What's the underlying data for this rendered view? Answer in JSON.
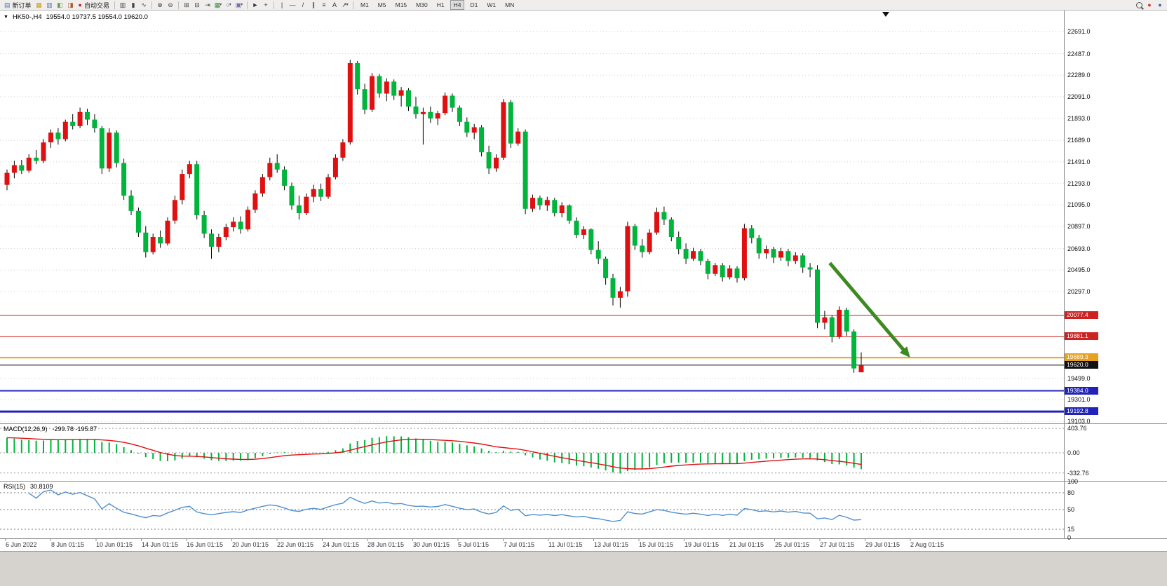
{
  "toolbar": {
    "timeframes": [
      "M1",
      "M5",
      "M15",
      "M30",
      "H1",
      "H4",
      "D1",
      "W1",
      "MN"
    ],
    "active_timeframe": "H4",
    "items": [
      {
        "kind": "text",
        "name": "new-order-button",
        "glyph": "▤",
        "glyph_color": "#4a78b0",
        "label": "新订单"
      },
      {
        "kind": "icon",
        "name": "chart-window-icon",
        "glyph": "▦",
        "color": "#c79a16"
      },
      {
        "kind": "icon",
        "name": "market-watch-icon",
        "glyph": "▥",
        "color": "#4a78b0"
      },
      {
        "kind": "icon",
        "name": "navigator-icon",
        "glyph": "◧",
        "color": "#6a9a4a"
      },
      {
        "kind": "icon",
        "name": "terminal-icon",
        "glyph": "◨",
        "color": "#b05a2a"
      },
      {
        "kind": "text",
        "name": "autotrading-button",
        "glyph": "●",
        "glyph_color": "#d22020",
        "label": "自动交易"
      },
      {
        "kind": "sep"
      },
      {
        "kind": "icon",
        "name": "bar-chart-icon",
        "glyph": "▥",
        "color": "#444"
      },
      {
        "kind": "icon",
        "name": "candlestick-chart-icon",
        "glyph": "▮",
        "color": "#444"
      },
      {
        "kind": "icon",
        "name": "line-chart-icon",
        "glyph": "∿",
        "color": "#444"
      },
      {
        "kind": "sep"
      },
      {
        "kind": "icon",
        "name": "zoom-in-icon",
        "glyph": "⊕",
        "color": "#444"
      },
      {
        "kind": "icon",
        "name": "zoom-out-icon",
        "glyph": "⊖",
        "color": "#444"
      },
      {
        "kind": "sep"
      },
      {
        "kind": "icon",
        "name": "tile-windows-icon",
        "glyph": "⊞",
        "color": "#444"
      },
      {
        "kind": "icon",
        "name": "auto-arrange-icon",
        "glyph": "⊟",
        "color": "#444"
      },
      {
        "kind": "icon",
        "name": "chart-shift-icon",
        "glyph": "⇥",
        "color": "#444"
      },
      {
        "kind": "icon",
        "name": "new-chart-icon",
        "glyph": "▦",
        "color": "#3b8a3b",
        "caret": true
      },
      {
        "kind": "icon",
        "name": "profiles-icon",
        "glyph": "○",
        "color": "#3b6ab0",
        "caret": true
      },
      {
        "kind": "icon",
        "name": "snapshot-icon",
        "glyph": "▣",
        "color": "#7a6ab0",
        "caret": true
      },
      {
        "kind": "sep"
      },
      {
        "kind": "icon",
        "name": "cursor-icon",
        "glyph": "►",
        "color": "#333"
      },
      {
        "kind": "icon",
        "name": "crosshair-icon",
        "glyph": "+",
        "color": "#333"
      },
      {
        "kind": "sep"
      },
      {
        "kind": "icon",
        "name": "vertical-line-icon",
        "glyph": "|",
        "color": "#333"
      },
      {
        "kind": "icon",
        "name": "horizontal-line-icon",
        "glyph": "—",
        "color": "#333"
      },
      {
        "kind": "icon",
        "name": "trendline-icon",
        "glyph": "/",
        "color": "#333"
      },
      {
        "kind": "icon",
        "name": "equidistant-channel-icon",
        "glyph": "∥",
        "color": "#333"
      },
      {
        "kind": "icon",
        "name": "fibonacci-icon",
        "glyph": "≡",
        "color": "#333"
      },
      {
        "kind": "icon",
        "name": "text-label-icon",
        "glyph": "A",
        "color": "#333"
      },
      {
        "kind": "icon",
        "name": "arrows-tool-icon",
        "glyph": "↗",
        "color": "#333",
        "caret": true
      },
      {
        "kind": "sep"
      },
      {
        "kind": "timeframes"
      },
      {
        "kind": "spacer"
      },
      {
        "kind": "mag",
        "name": "search-icon"
      },
      {
        "kind": "icon",
        "name": "notification-icon",
        "glyph": "●",
        "color": "#e03030"
      },
      {
        "kind": "icon",
        "name": "community-icon",
        "glyph": "●",
        "color": "#3b6ab0"
      }
    ]
  },
  "chart_header": {
    "symbol_period": "HK50-,H4",
    "ohlc": "19554.0 19737.5 19554.0 19620.0"
  },
  "indicators": {
    "macd": {
      "label": "MACD(12,26,9)",
      "values": "-299.78 -195.87",
      "scale": [
        "403.76",
        "0.00",
        "-332.76"
      ],
      "scale_values": [
        403.76,
        0,
        -332.76
      ],
      "range": {
        "min": -452,
        "max": 475
      }
    },
    "rsi": {
      "label": "RSI(15)",
      "value": "30.8109",
      "scale": [
        "100",
        "80",
        "50",
        "15",
        "0"
      ],
      "scale_values": [
        100,
        80,
        50,
        15,
        0
      ],
      "levels": [
        80,
        50,
        15
      ]
    }
  },
  "chart_data": {
    "type": "candlestick",
    "symbol": "HK50-",
    "period": "H4",
    "price_axis": {
      "min": 19084,
      "max": 22884,
      "labels": [
        {
          "text": "22691.0",
          "value": 22691
        },
        {
          "text": "22487.0",
          "value": 22487
        },
        {
          "text": "22289.0",
          "value": 22289
        },
        {
          "text": "22091.0",
          "value": 22091
        },
        {
          "text": "21893.0",
          "value": 21893
        },
        {
          "text": "21689.0",
          "value": 21689
        },
        {
          "text": "21491.0",
          "value": 21491
        },
        {
          "text": "21293.0",
          "value": 21293
        },
        {
          "text": "21095.0",
          "value": 21095
        },
        {
          "text": "20897.0",
          "value": 20897
        },
        {
          "text": "20693.0",
          "value": 20693
        },
        {
          "text": "20495.0",
          "value": 20495
        },
        {
          "text": "20297.0",
          "value": 20297
        },
        {
          "text": "19499.0",
          "value": 19499
        },
        {
          "text": "19301.0",
          "value": 19301
        },
        {
          "text": "19103.0",
          "value": 19103
        }
      ]
    },
    "time_axis": {
      "labels": [
        "6 Jun 2022",
        "8 Jun 01:15",
        "10 Jun 01:15",
        "14 Jun 01:15",
        "16 Jun 01:15",
        "20 Jun 01:15",
        "22 Jun 01:15",
        "24 Jun 01:15",
        "28 Jun 01:15",
        "30 Jun 01:15",
        "5 Jul 01:15",
        "7 Jul 01:15",
        "11 Jul 01:15",
        "13 Jul 01:15",
        "15 Jul 01:15",
        "19 Jul 01:15",
        "21 Jul 01:15",
        "25 Jul 01:15",
        "27 Jul 01:15",
        "29 Jul 01:15",
        "2 Aug 01:15"
      ]
    },
    "levels": [
      {
        "label": "20077.4",
        "value": 20077.4,
        "color": "#cc2222",
        "line_width": 1
      },
      {
        "label": "19881.1",
        "value": 19881.1,
        "color": "#cc2222",
        "line_width": 1
      },
      {
        "label": "19689.3",
        "value": 19689.3,
        "color": "#e8a020",
        "line_width": 2
      },
      {
        "label": "19620.0",
        "value": 19620.0,
        "color": "#111111",
        "line_width": 1
      },
      {
        "label": "19384.0",
        "value": 19384.0,
        "color": "#2222bb",
        "line_width": 2
      },
      {
        "label": "19192.8",
        "value": 19192.8,
        "color": "#2222bb",
        "line_width": 3
      }
    ],
    "arrow": {
      "from_index": 112.7,
      "from_price": 20560,
      "to_index": 123.7,
      "to_price": 19690,
      "color": "#3c8a20"
    },
    "colors": {
      "up": "#e01010",
      "down": "#00b43c",
      "wick": "#000000",
      "macd_hist": "#00b43c",
      "macd_signal": "#e01010",
      "rsi_line": "#4f8fd0"
    },
    "candles": [
      [
        21280,
        21420,
        21230,
        21390
      ],
      [
        21390,
        21500,
        21340,
        21460
      ],
      [
        21460,
        21510,
        21380,
        21410
      ],
      [
        21410,
        21560,
        21390,
        21530
      ],
      [
        21530,
        21600,
        21470,
        21500
      ],
      [
        21500,
        21700,
        21480,
        21670
      ],
      [
        21670,
        21790,
        21620,
        21760
      ],
      [
        21760,
        21800,
        21650,
        21700
      ],
      [
        21700,
        21880,
        21680,
        21860
      ],
      [
        21860,
        21930,
        21790,
        21820
      ],
      [
        21820,
        21990,
        21800,
        21950
      ],
      [
        21950,
        21980,
        21830,
        21880
      ],
      [
        21880,
        21930,
        21760,
        21800
      ],
      [
        21800,
        21820,
        21380,
        21430
      ],
      [
        21430,
        21800,
        21400,
        21760
      ],
      [
        21760,
        21780,
        21440,
        21480
      ],
      [
        21480,
        21520,
        21140,
        21180
      ],
      [
        21180,
        21230,
        21000,
        21040
      ],
      [
        21040,
        21070,
        20800,
        20840
      ],
      [
        20840,
        20900,
        20610,
        20660
      ],
      [
        20660,
        20830,
        20640,
        20800
      ],
      [
        20800,
        20860,
        20700,
        20740
      ],
      [
        20740,
        20980,
        20720,
        20950
      ],
      [
        20950,
        21180,
        20920,
        21140
      ],
      [
        21140,
        21420,
        21100,
        21380
      ],
      [
        21380,
        21500,
        21340,
        21470
      ],
      [
        21470,
        21500,
        20960,
        21000
      ],
      [
        21000,
        21040,
        20790,
        20830
      ],
      [
        20830,
        20870,
        20600,
        20710
      ],
      [
        20710,
        20830,
        20660,
        20800
      ],
      [
        20800,
        20920,
        20770,
        20890
      ],
      [
        20890,
        20980,
        20850,
        20940
      ],
      [
        20940,
        20990,
        20830,
        20870
      ],
      [
        20870,
        21080,
        20850,
        21050
      ],
      [
        21050,
        21230,
        21020,
        21200
      ],
      [
        21200,
        21380,
        21170,
        21350
      ],
      [
        21350,
        21530,
        21320,
        21480
      ],
      [
        21480,
        21560,
        21390,
        21420
      ],
      [
        21420,
        21450,
        21230,
        21270
      ],
      [
        21270,
        21300,
        21050,
        21090
      ],
      [
        21090,
        21180,
        20960,
        21020
      ],
      [
        21020,
        21200,
        21000,
        21170
      ],
      [
        21170,
        21280,
        21120,
        21240
      ],
      [
        21240,
        21290,
        21130,
        21170
      ],
      [
        21170,
        21380,
        21150,
        21350
      ],
      [
        21350,
        21560,
        21330,
        21530
      ],
      [
        21530,
        21700,
        21500,
        21670
      ],
      [
        21670,
        22430,
        21650,
        22400
      ],
      [
        22400,
        22420,
        22110,
        22160
      ],
      [
        22160,
        22210,
        21930,
        21970
      ],
      [
        21970,
        22310,
        21950,
        22280
      ],
      [
        22280,
        22300,
        22080,
        22120
      ],
      [
        22120,
        22260,
        22050,
        22230
      ],
      [
        22230,
        22250,
        22060,
        22100
      ],
      [
        22100,
        22180,
        22000,
        22150
      ],
      [
        22150,
        22170,
        21960,
        22000
      ],
      [
        22000,
        22090,
        21890,
        21930
      ],
      [
        21930,
        21990,
        21650,
        21950
      ],
      [
        21950,
        22000,
        21850,
        21890
      ],
      [
        21890,
        21960,
        21830,
        21940
      ],
      [
        21940,
        22130,
        21920,
        22100
      ],
      [
        22100,
        22120,
        21950,
        21990
      ],
      [
        21990,
        22010,
        21820,
        21860
      ],
      [
        21860,
        21900,
        21720,
        21760
      ],
      [
        21760,
        21840,
        21700,
        21810
      ],
      [
        21810,
        21830,
        21540,
        21580
      ],
      [
        21580,
        21640,
        21380,
        21430
      ],
      [
        21430,
        21560,
        21400,
        21530
      ],
      [
        21530,
        22070,
        21510,
        22040
      ],
      [
        22040,
        22060,
        21620,
        21660
      ],
      [
        21660,
        21800,
        21640,
        21770
      ],
      [
        21770,
        21790,
        21010,
        21060
      ],
      [
        21060,
        21190,
        21030,
        21160
      ],
      [
        21160,
        21180,
        21050,
        21090
      ],
      [
        21090,
        21170,
        21040,
        21140
      ],
      [
        21140,
        21160,
        20990,
        21020
      ],
      [
        21020,
        21120,
        20980,
        21090
      ],
      [
        21090,
        21100,
        20920,
        20950
      ],
      [
        20950,
        20980,
        20790,
        20820
      ],
      [
        20820,
        20900,
        20780,
        20870
      ],
      [
        20870,
        20880,
        20640,
        20680
      ],
      [
        20680,
        20760,
        20550,
        20600
      ],
      [
        20600,
        20620,
        20360,
        20420
      ],
      [
        20420,
        20460,
        20170,
        20240
      ],
      [
        20240,
        20340,
        20150,
        20300
      ],
      [
        20300,
        20940,
        20250,
        20900
      ],
      [
        20900,
        20920,
        20680,
        20720
      ],
      [
        20720,
        20780,
        20610,
        20660
      ],
      [
        20660,
        20870,
        20640,
        20840
      ],
      [
        20840,
        21070,
        20820,
        21030
      ],
      [
        21030,
        21080,
        20910,
        20960
      ],
      [
        20960,
        20980,
        20760,
        20800
      ],
      [
        20800,
        20850,
        20640,
        20690
      ],
      [
        20690,
        20740,
        20550,
        20600
      ],
      [
        20600,
        20700,
        20580,
        20670
      ],
      [
        20670,
        20690,
        20540,
        20580
      ],
      [
        20580,
        20600,
        20410,
        20460
      ],
      [
        20460,
        20560,
        20440,
        20540
      ],
      [
        20540,
        20560,
        20390,
        20430
      ],
      [
        20430,
        20540,
        20410,
        20510
      ],
      [
        20510,
        20530,
        20380,
        20420
      ],
      [
        20420,
        20920,
        20400,
        20880
      ],
      [
        20880,
        20910,
        20740,
        20790
      ],
      [
        20790,
        20820,
        20600,
        20650
      ],
      [
        20650,
        20720,
        20600,
        20690
      ],
      [
        20690,
        20710,
        20560,
        20610
      ],
      [
        20610,
        20700,
        20580,
        20670
      ],
      [
        20670,
        20690,
        20530,
        20580
      ],
      [
        20580,
        20660,
        20550,
        20630
      ],
      [
        20630,
        20650,
        20470,
        20520
      ],
      [
        20520,
        20560,
        20430,
        20500
      ],
      [
        20500,
        20540,
        19960,
        20010
      ],
      [
        20010,
        20120,
        19950,
        20060
      ],
      [
        20060,
        20080,
        19830,
        19880
      ],
      [
        19880,
        20160,
        19860,
        20130
      ],
      [
        20130,
        20150,
        19890,
        19930
      ],
      [
        19930,
        19950,
        19550,
        19590
      ],
      [
        19554,
        19737.5,
        19554,
        19620
      ]
    ]
  }
}
